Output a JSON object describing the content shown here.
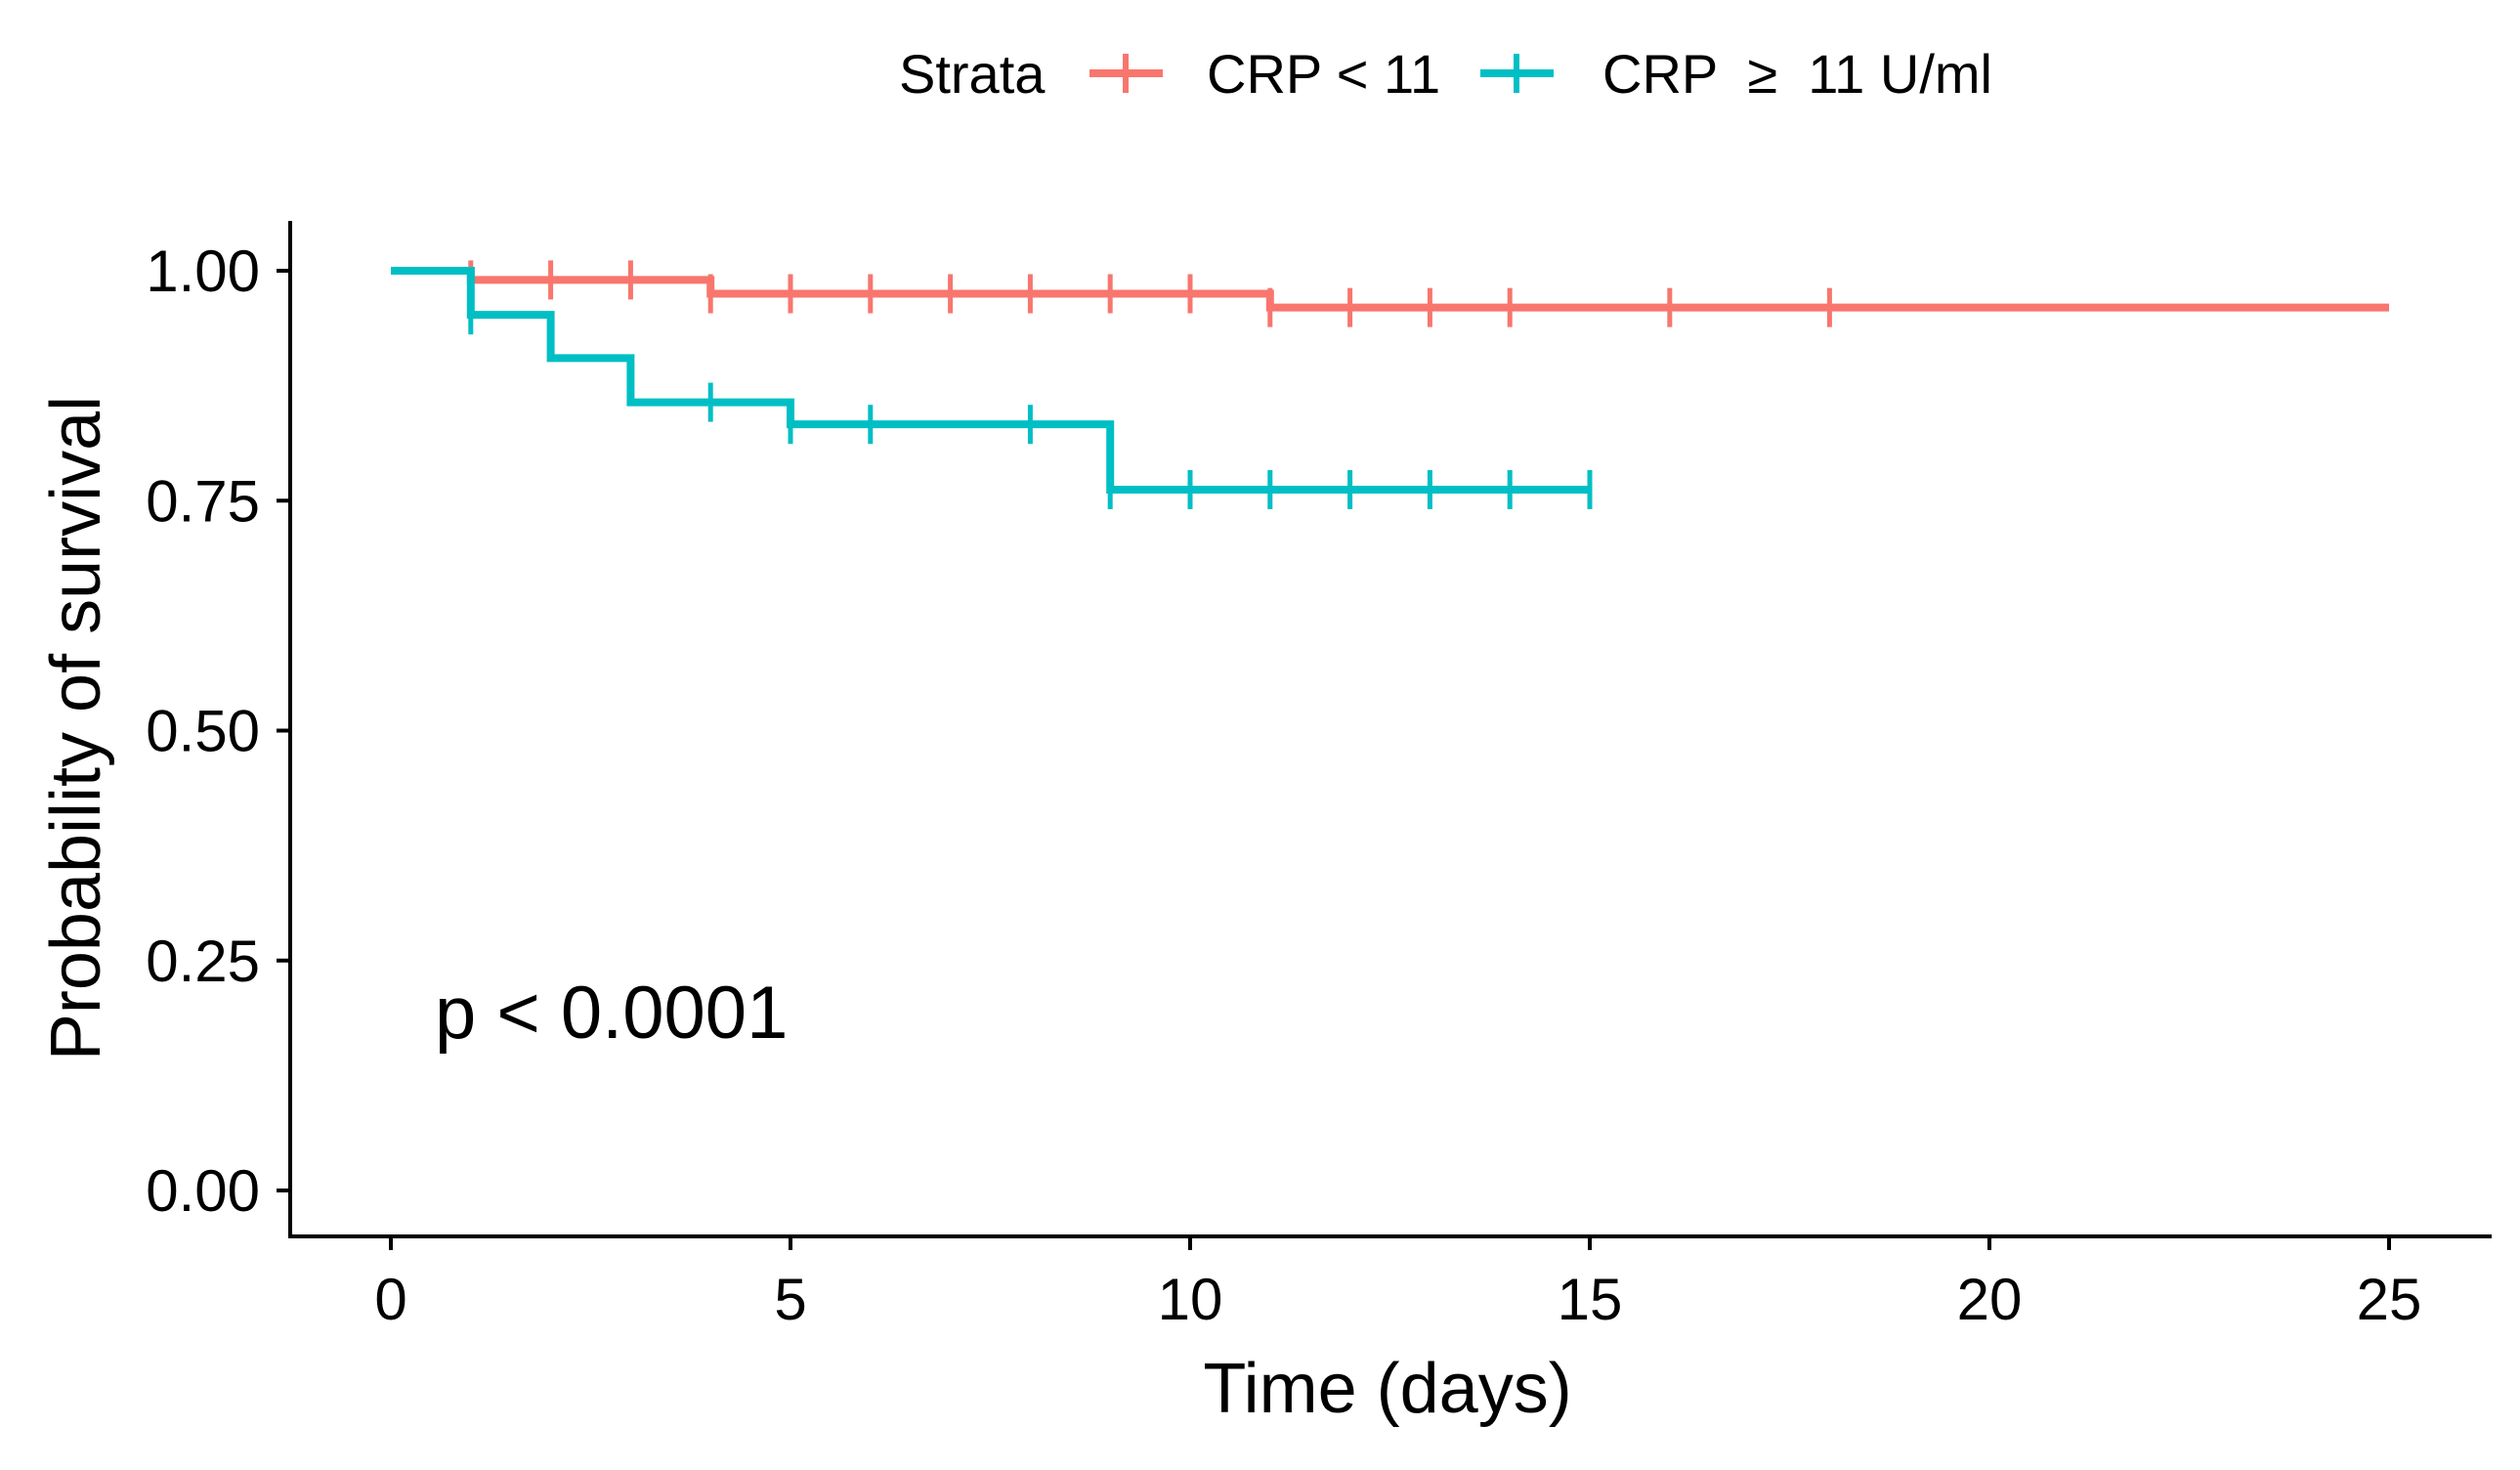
{
  "chart_data": {
    "type": "line",
    "subtype": "kaplan-meier step",
    "xlabel": "Time (days)",
    "ylabel": "Probability of survival",
    "xlim": [
      -0.5,
      26
    ],
    "ylim": [
      -0.05,
      1.05
    ],
    "xticks": [
      0,
      5,
      10,
      15,
      20,
      25
    ],
    "yticks": [
      0,
      0.25,
      0.5,
      0.75,
      1.0
    ],
    "xtick_labels": [
      "0",
      "5",
      "10",
      "15",
      "20",
      "25"
    ],
    "ytick_labels": [
      "0.00",
      "0.25",
      "0.50",
      "0.75",
      "1.00"
    ],
    "legend": {
      "title": "Strata",
      "position": "top",
      "entries": [
        {
          "label": "CRP < 11",
          "color": "#F8766D"
        },
        {
          "label": "CRP  ≥  11 U/ml",
          "color": "#00BFC4"
        }
      ]
    },
    "annotation": "p < 0.0001",
    "series": [
      {
        "name": "CRP < 11",
        "color": "#F8766D",
        "steps": [
          [
            0,
            1.0
          ],
          [
            1,
            0.99
          ],
          [
            4,
            0.975
          ],
          [
            11,
            0.96
          ],
          [
            25,
            0.96
          ]
        ],
        "censored": [
          [
            1,
            0.99
          ],
          [
            2,
            0.99
          ],
          [
            3,
            0.99
          ],
          [
            4,
            0.975
          ],
          [
            5,
            0.975
          ],
          [
            6,
            0.975
          ],
          [
            7,
            0.975
          ],
          [
            8,
            0.975
          ],
          [
            9,
            0.975
          ],
          [
            10,
            0.975
          ],
          [
            11,
            0.96
          ],
          [
            12,
            0.96
          ],
          [
            13,
            0.96
          ],
          [
            14,
            0.96
          ],
          [
            16,
            0.96
          ],
          [
            18,
            0.96
          ]
        ]
      },
      {
        "name": "CRP ≥ 11 U/ml",
        "color": "#00BFC4",
        "steps": [
          [
            0,
            1.0
          ],
          [
            1,
            0.952
          ],
          [
            2,
            0.905
          ],
          [
            3,
            0.857
          ],
          [
            5,
            0.833
          ],
          [
            9,
            0.762
          ],
          [
            15,
            0.762
          ]
        ],
        "censored": [
          [
            1,
            0.952
          ],
          [
            4,
            0.857
          ],
          [
            5,
            0.833
          ],
          [
            6,
            0.833
          ],
          [
            8,
            0.833
          ],
          [
            9,
            0.762
          ],
          [
            10,
            0.762
          ],
          [
            11,
            0.762
          ],
          [
            12,
            0.762
          ],
          [
            13,
            0.762
          ],
          [
            14,
            0.762
          ],
          [
            15,
            0.762
          ]
        ]
      }
    ]
  }
}
